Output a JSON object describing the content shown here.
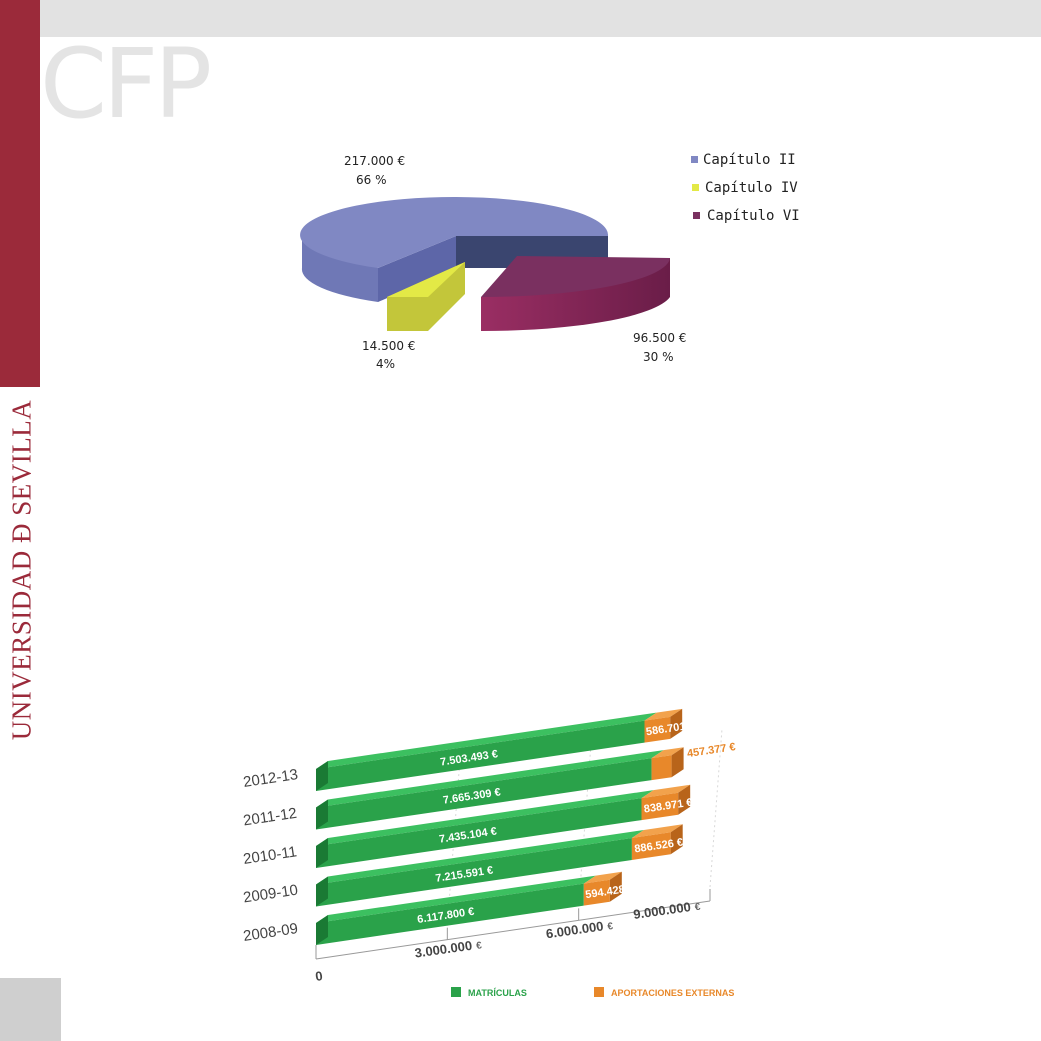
{
  "header": {
    "logo_text": "CFP",
    "side_text": "UNIVERSIDAD Ð SEVILLA"
  },
  "colors": {
    "brand": "#9b2a3a",
    "pie_cap2": "#8088c3",
    "pie_cap4": "#e3e946",
    "pie_cap6": "#7a3060",
    "bar_green": "#2aa24a",
    "bar_orange": "#e8882a"
  },
  "chart_data": [
    {
      "type": "pie",
      "title": "",
      "slices": [
        {
          "name": "Capítulo II",
          "value": 217000,
          "value_label": "217.000 €",
          "percent_label": "66 %"
        },
        {
          "name": "Capítulo IV",
          "value": 14500,
          "value_label": "14.500 €",
          "percent_label": "4%"
        },
        {
          "name": "Capítulo VI",
          "value": 96500,
          "value_label": "96.500 €",
          "percent_label": "30 %"
        }
      ],
      "legend": [
        "Capítulo II",
        "Capítulo IV",
        "Capítulo VI"
      ],
      "legend_position": "top-right"
    },
    {
      "type": "bar",
      "stacked": true,
      "orientation": "horizontal",
      "categories": [
        "2012-13",
        "2011-12",
        "2010-11",
        "2009-10",
        "2008-09"
      ],
      "series": [
        {
          "name": "MATRÍCULAS",
          "values": [
            7503493,
            7665309,
            7435104,
            7215591,
            6117800
          ],
          "labels": [
            "7.503.493 €",
            "7.665.309 €",
            "7.435.104 €",
            "7.215.591 €",
            "6.117.800 €"
          ]
        },
        {
          "name": "APORTACIONES EXTERNAS",
          "values": [
            586701,
            457377,
            838971,
            886526,
            594428
          ],
          "labels": [
            "586.701 €",
            "457.377 €",
            "838.971 €",
            "886.526 €",
            "594.428 €"
          ]
        }
      ],
      "xlim": [
        0,
        9000000
      ],
      "ticks": [
        {
          "value": 0,
          "label": "0",
          "unit": ""
        },
        {
          "value": 3000000,
          "label": "3.000.000",
          "unit": "€"
        },
        {
          "value": 6000000,
          "label": "6.000.000",
          "unit": "€"
        },
        {
          "value": 9000000,
          "label": "9.000.000",
          "unit": "€"
        }
      ],
      "legend_position": "bottom"
    }
  ]
}
